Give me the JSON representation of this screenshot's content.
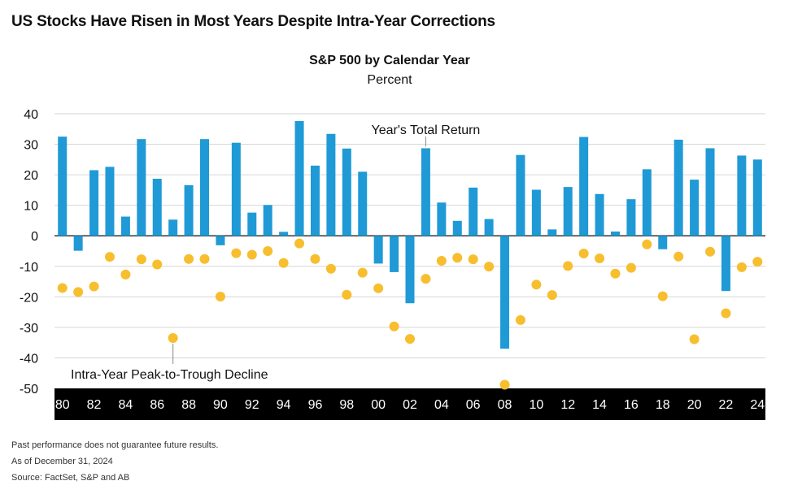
{
  "header": {
    "headline": "US Stocks Have Risen in Most Years Despite Intra-Year Corrections"
  },
  "chart_data": {
    "type": "bar",
    "title": "S&P 500 by Calendar Year",
    "subtitle": "Percent",
    "ylim": [
      -50,
      40
    ],
    "yticks": [
      40,
      30,
      20,
      10,
      0,
      -10,
      -20,
      -30,
      -40,
      -50
    ],
    "grid": true,
    "categories": [
      1980,
      1981,
      1982,
      1983,
      1984,
      1985,
      1986,
      1987,
      1988,
      1989,
      1990,
      1991,
      1992,
      1993,
      1994,
      1995,
      1996,
      1997,
      1998,
      1999,
      2000,
      2001,
      2002,
      2003,
      2004,
      2005,
      2006,
      2007,
      2008,
      2009,
      2010,
      2011,
      2012,
      2013,
      2014,
      2015,
      2016,
      2017,
      2018,
      2019,
      2020,
      2021,
      2022,
      2023,
      2024
    ],
    "xtick_labels": [
      "80",
      "82",
      "84",
      "86",
      "88",
      "90",
      "92",
      "94",
      "96",
      "98",
      "00",
      "02",
      "04",
      "06",
      "08",
      "10",
      "12",
      "14",
      "16",
      "18",
      "20",
      "22",
      "24"
    ],
    "series": [
      {
        "name": "Year's Total Return",
        "type": "bar",
        "color": "#1f9ad6",
        "values": [
          32.5,
          -4.9,
          21.5,
          22.6,
          6.3,
          31.7,
          18.7,
          5.3,
          16.6,
          31.7,
          -3.1,
          30.5,
          7.6,
          10.1,
          1.3,
          37.6,
          23.0,
          33.4,
          28.6,
          21.0,
          -9.1,
          -11.9,
          -22.1,
          28.7,
          10.9,
          4.9,
          15.8,
          5.5,
          -37.0,
          26.5,
          15.1,
          2.1,
          16.0,
          32.4,
          13.7,
          1.4,
          12.0,
          21.8,
          -4.4,
          31.5,
          18.4,
          28.7,
          -18.1,
          26.3,
          25.0
        ]
      },
      {
        "name": "Intra-Year Peak-to-Trough Decline",
        "type": "scatter",
        "color": "#f7be2e",
        "values": [
          -17.1,
          -18.4,
          -16.6,
          -6.9,
          -12.7,
          -7.7,
          -9.4,
          -33.5,
          -7.6,
          -7.6,
          -19.9,
          -5.7,
          -6.2,
          -5.0,
          -8.9,
          -2.5,
          -7.6,
          -10.8,
          -19.3,
          -12.1,
          -17.2,
          -29.7,
          -33.8,
          -14.1,
          -8.2,
          -7.2,
          -7.7,
          -10.1,
          -48.8,
          -27.6,
          -16.0,
          -19.4,
          -9.9,
          -5.8,
          -7.4,
          -12.4,
          -10.5,
          -2.8,
          -19.8,
          -6.8,
          -33.9,
          -5.2,
          -25.4,
          -10.3,
          -8.5
        ]
      }
    ],
    "annotations": {
      "total_return_label": "Year's Total Return",
      "decline_label": "Intra-Year Peak-to-Trough Decline"
    }
  },
  "footer": {
    "disclaimer": "Past performance does not guarantee future results.",
    "as_of": "As of December 31, 2024",
    "source": "Source: FactSet, S&P and AB"
  }
}
